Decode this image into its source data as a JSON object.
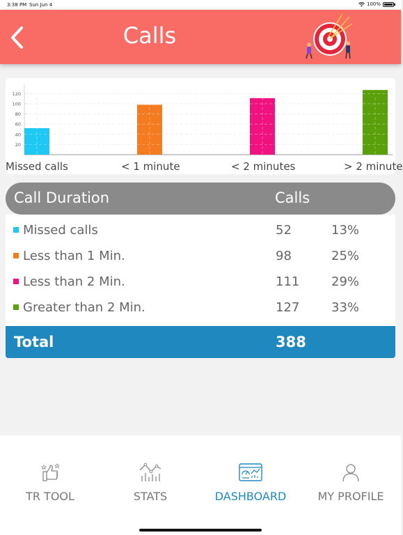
{
  "status_bar": {
    "time": "3:38 PM",
    "date": "Sun Jun 4",
    "battery": "100%"
  },
  "header": {
    "title": "Calls",
    "back_icon": "chevron-left-icon",
    "illustration": "target-icon"
  },
  "chart_data": {
    "type": "bar",
    "categories": [
      "Missed calls",
      "< 1 minute",
      "< 2 minutes",
      "> 2 minute"
    ],
    "values": [
      52,
      98,
      111,
      127
    ],
    "colors": [
      "#1ec8f2",
      "#f47b20",
      "#f0127f",
      "#5aa00a"
    ],
    "y_ticks": [
      "120",
      "100",
      "80",
      "60",
      "40",
      "20"
    ],
    "ylim": [
      0,
      130
    ],
    "grid": true
  },
  "table": {
    "headers": {
      "duration": "Call Duration",
      "calls": "Calls"
    },
    "rows": [
      {
        "label": "Missed calls",
        "calls": "52",
        "pct": "13%",
        "color": "#1ec8f2"
      },
      {
        "label": "Less than 1 Min.",
        "calls": "98",
        "pct": "25%",
        "color": "#f47b20"
      },
      {
        "label": "Less than 2 Min.",
        "calls": "111",
        "pct": "29%",
        "color": "#f0127f"
      },
      {
        "label": "Greater than 2 Min.",
        "calls": "127",
        "pct": "33%",
        "color": "#5aa00a"
      }
    ],
    "total": {
      "label": "Total",
      "value": "388"
    }
  },
  "nav": {
    "items": [
      {
        "label": "TR TOOL",
        "icon": "thumbs-up-icon",
        "active": false
      },
      {
        "label": "STATS",
        "icon": "line-chart-icon",
        "active": false
      },
      {
        "label": "DASHBOARD",
        "icon": "dashboard-icon",
        "active": true
      },
      {
        "label": "MY PROFILE",
        "icon": "user-icon",
        "active": false
      }
    ]
  },
  "colors": {
    "header": "#f96b65",
    "accent": "#1f89bf",
    "table_header": "#8a8a8a"
  }
}
